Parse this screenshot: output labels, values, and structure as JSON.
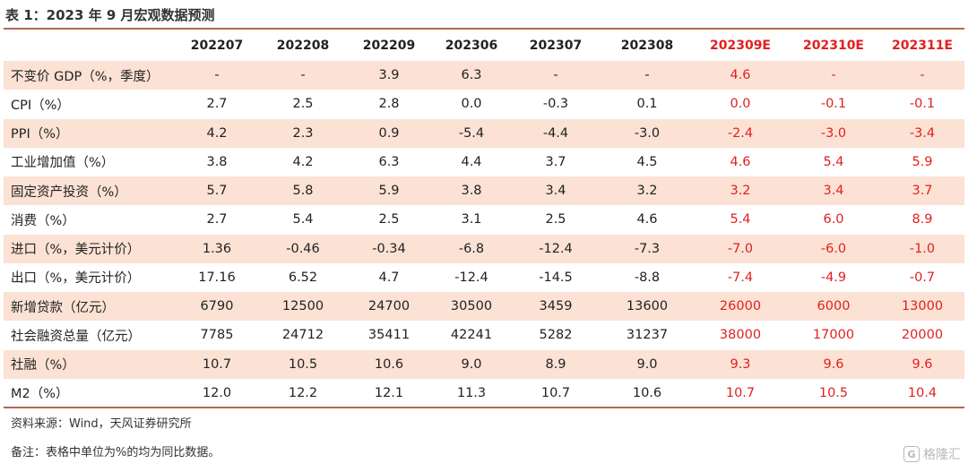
{
  "title": "表 1：2023 年 9 月宏观数据预测",
  "columns": [
    "202207",
    "202208",
    "202209",
    "202306",
    "202307",
    "202308",
    "202309E",
    "202310E",
    "202311E"
  ],
  "rows": [
    {
      "label": "不变价 GDP（%，季度）",
      "values": [
        "-",
        "-",
        "3.9",
        "6.3",
        "-",
        "-",
        "4.6",
        "-",
        "-"
      ]
    },
    {
      "label": "CPI（%）",
      "values": [
        "2.7",
        "2.5",
        "2.8",
        "0.0",
        "-0.3",
        "0.1",
        "0.0",
        "-0.1",
        "-0.1"
      ]
    },
    {
      "label": "PPI（%）",
      "values": [
        "4.2",
        "2.3",
        "0.9",
        "-5.4",
        "-4.4",
        "-3.0",
        "-2.4",
        "-3.0",
        "-3.4"
      ]
    },
    {
      "label": "工业增加值（%）",
      "values": [
        "3.8",
        "4.2",
        "6.3",
        "4.4",
        "3.7",
        "4.5",
        "4.6",
        "5.4",
        "5.9"
      ]
    },
    {
      "label": "固定资产投资（%）",
      "values": [
        "5.7",
        "5.8",
        "5.9",
        "3.8",
        "3.4",
        "3.2",
        "3.2",
        "3.4",
        "3.7"
      ]
    },
    {
      "label": "消费（%）",
      "values": [
        "2.7",
        "5.4",
        "2.5",
        "3.1",
        "2.5",
        "4.6",
        "5.4",
        "6.0",
        "8.9"
      ]
    },
    {
      "label": "进口（%，美元计价）",
      "values": [
        "1.36",
        "-0.46",
        "-0.34",
        "-6.8",
        "-12.4",
        "-7.3",
        "-7.0",
        "-6.0",
        "-1.0"
      ]
    },
    {
      "label": "出口（%，美元计价）",
      "values": [
        "17.16",
        "6.52",
        "4.7",
        "-12.4",
        "-14.5",
        "-8.8",
        "-7.4",
        "-4.9",
        "-0.7"
      ]
    },
    {
      "label": "新增贷款（亿元）",
      "values": [
        "6790",
        "12500",
        "24700",
        "30500",
        "3459",
        "13600",
        "26000",
        "6000",
        "13000"
      ]
    },
    {
      "label": "社会融资总量（亿元）",
      "values": [
        "7785",
        "24712",
        "35411",
        "42241",
        "5282",
        "31237",
        "38000",
        "17000",
        "20000"
      ]
    },
    {
      "label": "社融（%）",
      "values": [
        "10.7",
        "10.5",
        "10.6",
        "9.0",
        "8.9",
        "9.0",
        "9.3",
        "9.6",
        "9.6"
      ]
    },
    {
      "label": "M2（%）",
      "values": [
        "12.0",
        "12.2",
        "12.1",
        "11.3",
        "10.7",
        "10.6",
        "10.7",
        "10.5",
        "10.4"
      ]
    }
  ],
  "source": "资料来源：Wind，天风证券研究所",
  "note": "备注：表格中单位为%的均为同比数据。",
  "watermark": {
    "logo_text": "G",
    "text": "格隆汇"
  },
  "colors": {
    "shade": "#fbe2d4",
    "estimate": "#e21f1f",
    "rule": "#b06a4e"
  }
}
